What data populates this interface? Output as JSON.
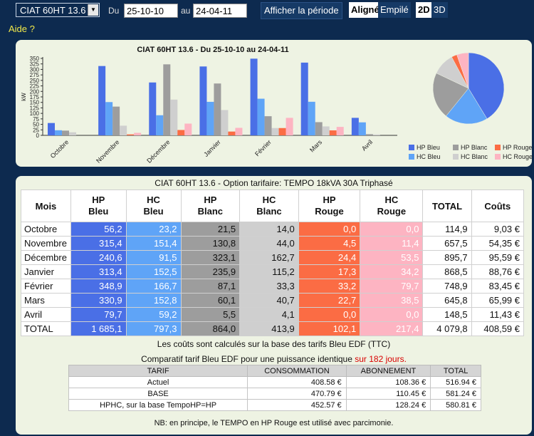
{
  "toolbar": {
    "device": "CIAT 60HT 13.6",
    "du_label": "Du",
    "date_from": "25-10-10",
    "au_label": "au",
    "date_to": "24-04-11",
    "show_period_button": "Afficher la période",
    "mode_aligned": "Aligné",
    "mode_stacked": "Empilé",
    "view_2d": "2D",
    "view_3d": "3D"
  },
  "help_link": "Aide ?",
  "colors": {
    "hp_bleu": "#4a6fe6",
    "hc_bleu": "#5fa4f7",
    "hp_blanc": "#9d9d9d",
    "hc_blanc": "#cfcfcf",
    "hp_rouge": "#fb6c44",
    "hc_rouge": "#fdb4c2",
    "panel_bg": "#eef3e3",
    "page_bg": "#0d2a4f",
    "help_yellow": "#f2e94a",
    "highlight_red": "#d90000"
  },
  "chart_data": [
    {
      "type": "bar",
      "title": "CIAT 60HT 13.6 - Du 25-10-10 au 24-04-11",
      "xlabel": "",
      "ylabel": "kW",
      "ylim": [
        0,
        350
      ],
      "yticks": [
        0,
        25,
        50,
        75,
        100,
        125,
        150,
        175,
        200,
        225,
        250,
        275,
        300,
        325,
        350
      ],
      "grid": false,
      "categories": [
        "Octobre",
        "Novembre",
        "Décembre",
        "Janvier",
        "Février",
        "Mars",
        "Avril"
      ],
      "series": [
        {
          "name": "HP Bleu",
          "values": [
            56.2,
            315.4,
            240.6,
            313.4,
            348.9,
            330.9,
            79.7
          ]
        },
        {
          "name": "HC Bleu",
          "values": [
            23.2,
            151.4,
            91.5,
            152.5,
            166.7,
            152.8,
            59.2
          ]
        },
        {
          "name": "HP Blanc",
          "values": [
            21.5,
            130.8,
            323.1,
            235.9,
            87.1,
            60.1,
            5.5
          ]
        },
        {
          "name": "HC Blanc",
          "values": [
            14.0,
            44.0,
            162.7,
            115.2,
            33.3,
            40.7,
            4.1
          ]
        },
        {
          "name": "HP Rouge",
          "values": [
            0.0,
            4.5,
            24.4,
            17.3,
            33.2,
            22.7,
            0.0
          ]
        },
        {
          "name": "HC Rouge",
          "values": [
            0.0,
            11.4,
            53.5,
            34.2,
            79.7,
            38.5,
            0.0
          ]
        }
      ],
      "legend_position": "bottom-right"
    },
    {
      "type": "pie",
      "labels": [
        "HP Bleu",
        "HC Bleu",
        "HP Blanc",
        "HC Blanc",
        "HP Rouge",
        "HC Rouge"
      ],
      "values": [
        1685.1,
        797.3,
        864.0,
        413.9,
        102.1,
        217.4
      ]
    }
  ],
  "legend": {
    "items": [
      {
        "label": "HP Bleu",
        "color": "#4a6fe6"
      },
      {
        "label": "HP Blanc",
        "color": "#9d9d9d"
      },
      {
        "label": "HP Rouge",
        "color": "#fb6c44"
      },
      {
        "label": "HC Bleu",
        "color": "#5fa4f7"
      },
      {
        "label": "HC Blanc",
        "color": "#cfcfcf"
      },
      {
        "label": "HC Rouge",
        "color": "#fdb4c2"
      }
    ]
  },
  "table": {
    "title": "CIAT 60HT 13.6 - Option tarifaire: TEMPO 18kVA 30A Triphasé",
    "headers": {
      "mois": "Mois",
      "hp_bleu_1": "HP",
      "hp_bleu_2": "Bleu",
      "hc_bleu_1": "HC",
      "hc_bleu_2": "Bleu",
      "hp_blanc_1": "HP",
      "hp_blanc_2": "Blanc",
      "hc_blanc_1": "HC",
      "hc_blanc_2": "Blanc",
      "hp_rouge_1": "HP",
      "hp_rouge_2": "Rouge",
      "hc_rouge_1": "HC",
      "hc_rouge_2": "Rouge",
      "total": "TOTAL",
      "couts": "Coûts"
    },
    "rows": [
      [
        "Octobre",
        "56,2",
        "23,2",
        "21,5",
        "14,0",
        "0,0",
        "0,0",
        "114,9",
        "9,03 €"
      ],
      [
        "Novembre",
        "315,4",
        "151,4",
        "130,8",
        "44,0",
        "4,5",
        "11,4",
        "657,5",
        "54,35 €"
      ],
      [
        "Décembre",
        "240,6",
        "91,5",
        "323,1",
        "162,7",
        "24,4",
        "53,5",
        "895,7",
        "95,59 €"
      ],
      [
        "Janvier",
        "313,4",
        "152,5",
        "235,9",
        "115,2",
        "17,3",
        "34,2",
        "868,5",
        "88,76 €"
      ],
      [
        "Février",
        "348,9",
        "166,7",
        "87,1",
        "33,3",
        "33,2",
        "79,7",
        "748,9",
        "83,45 €"
      ],
      [
        "Mars",
        "330,9",
        "152,8",
        "60,1",
        "40,7",
        "22,7",
        "38,5",
        "645,8",
        "65,99 €"
      ],
      [
        "Avril",
        "79,7",
        "59,2",
        "5,5",
        "4,1",
        "0,0",
        "0,0",
        "148,5",
        "11,43 €"
      ],
      [
        "TOTAL",
        "1 685,1",
        "797,3",
        "864,0",
        "413,9",
        "102,1",
        "217,4",
        "4 079,8",
        "408,59 €"
      ]
    ]
  },
  "note_costs": "Les coûts sont calculés sur la base des tarifs Bleu EDF (TTC)",
  "comparison": {
    "title": "Comparatif tarif Bleu EDF pour une puissance identique ",
    "title_highlight": "sur 182 jours.",
    "headers": {
      "tarif": "TARIF",
      "consommation": "CONSOMMATION",
      "abonnement": "ABONNEMENT",
      "total": "TOTAL"
    },
    "rows": [
      [
        "Actuel",
        "408.58 €",
        "108.36 €",
        "516.94 €"
      ],
      [
        "BASE",
        "470.79 €",
        "110.45 €",
        "581.24 €"
      ],
      [
        "HPHC, sur la base TempoHP=HP",
        "452.57 €",
        "128.24 €",
        "580.81 €"
      ]
    ]
  },
  "note_tempo": "NB: en principe, le TEMPO en HP Rouge est utilisé avec parcimonie."
}
